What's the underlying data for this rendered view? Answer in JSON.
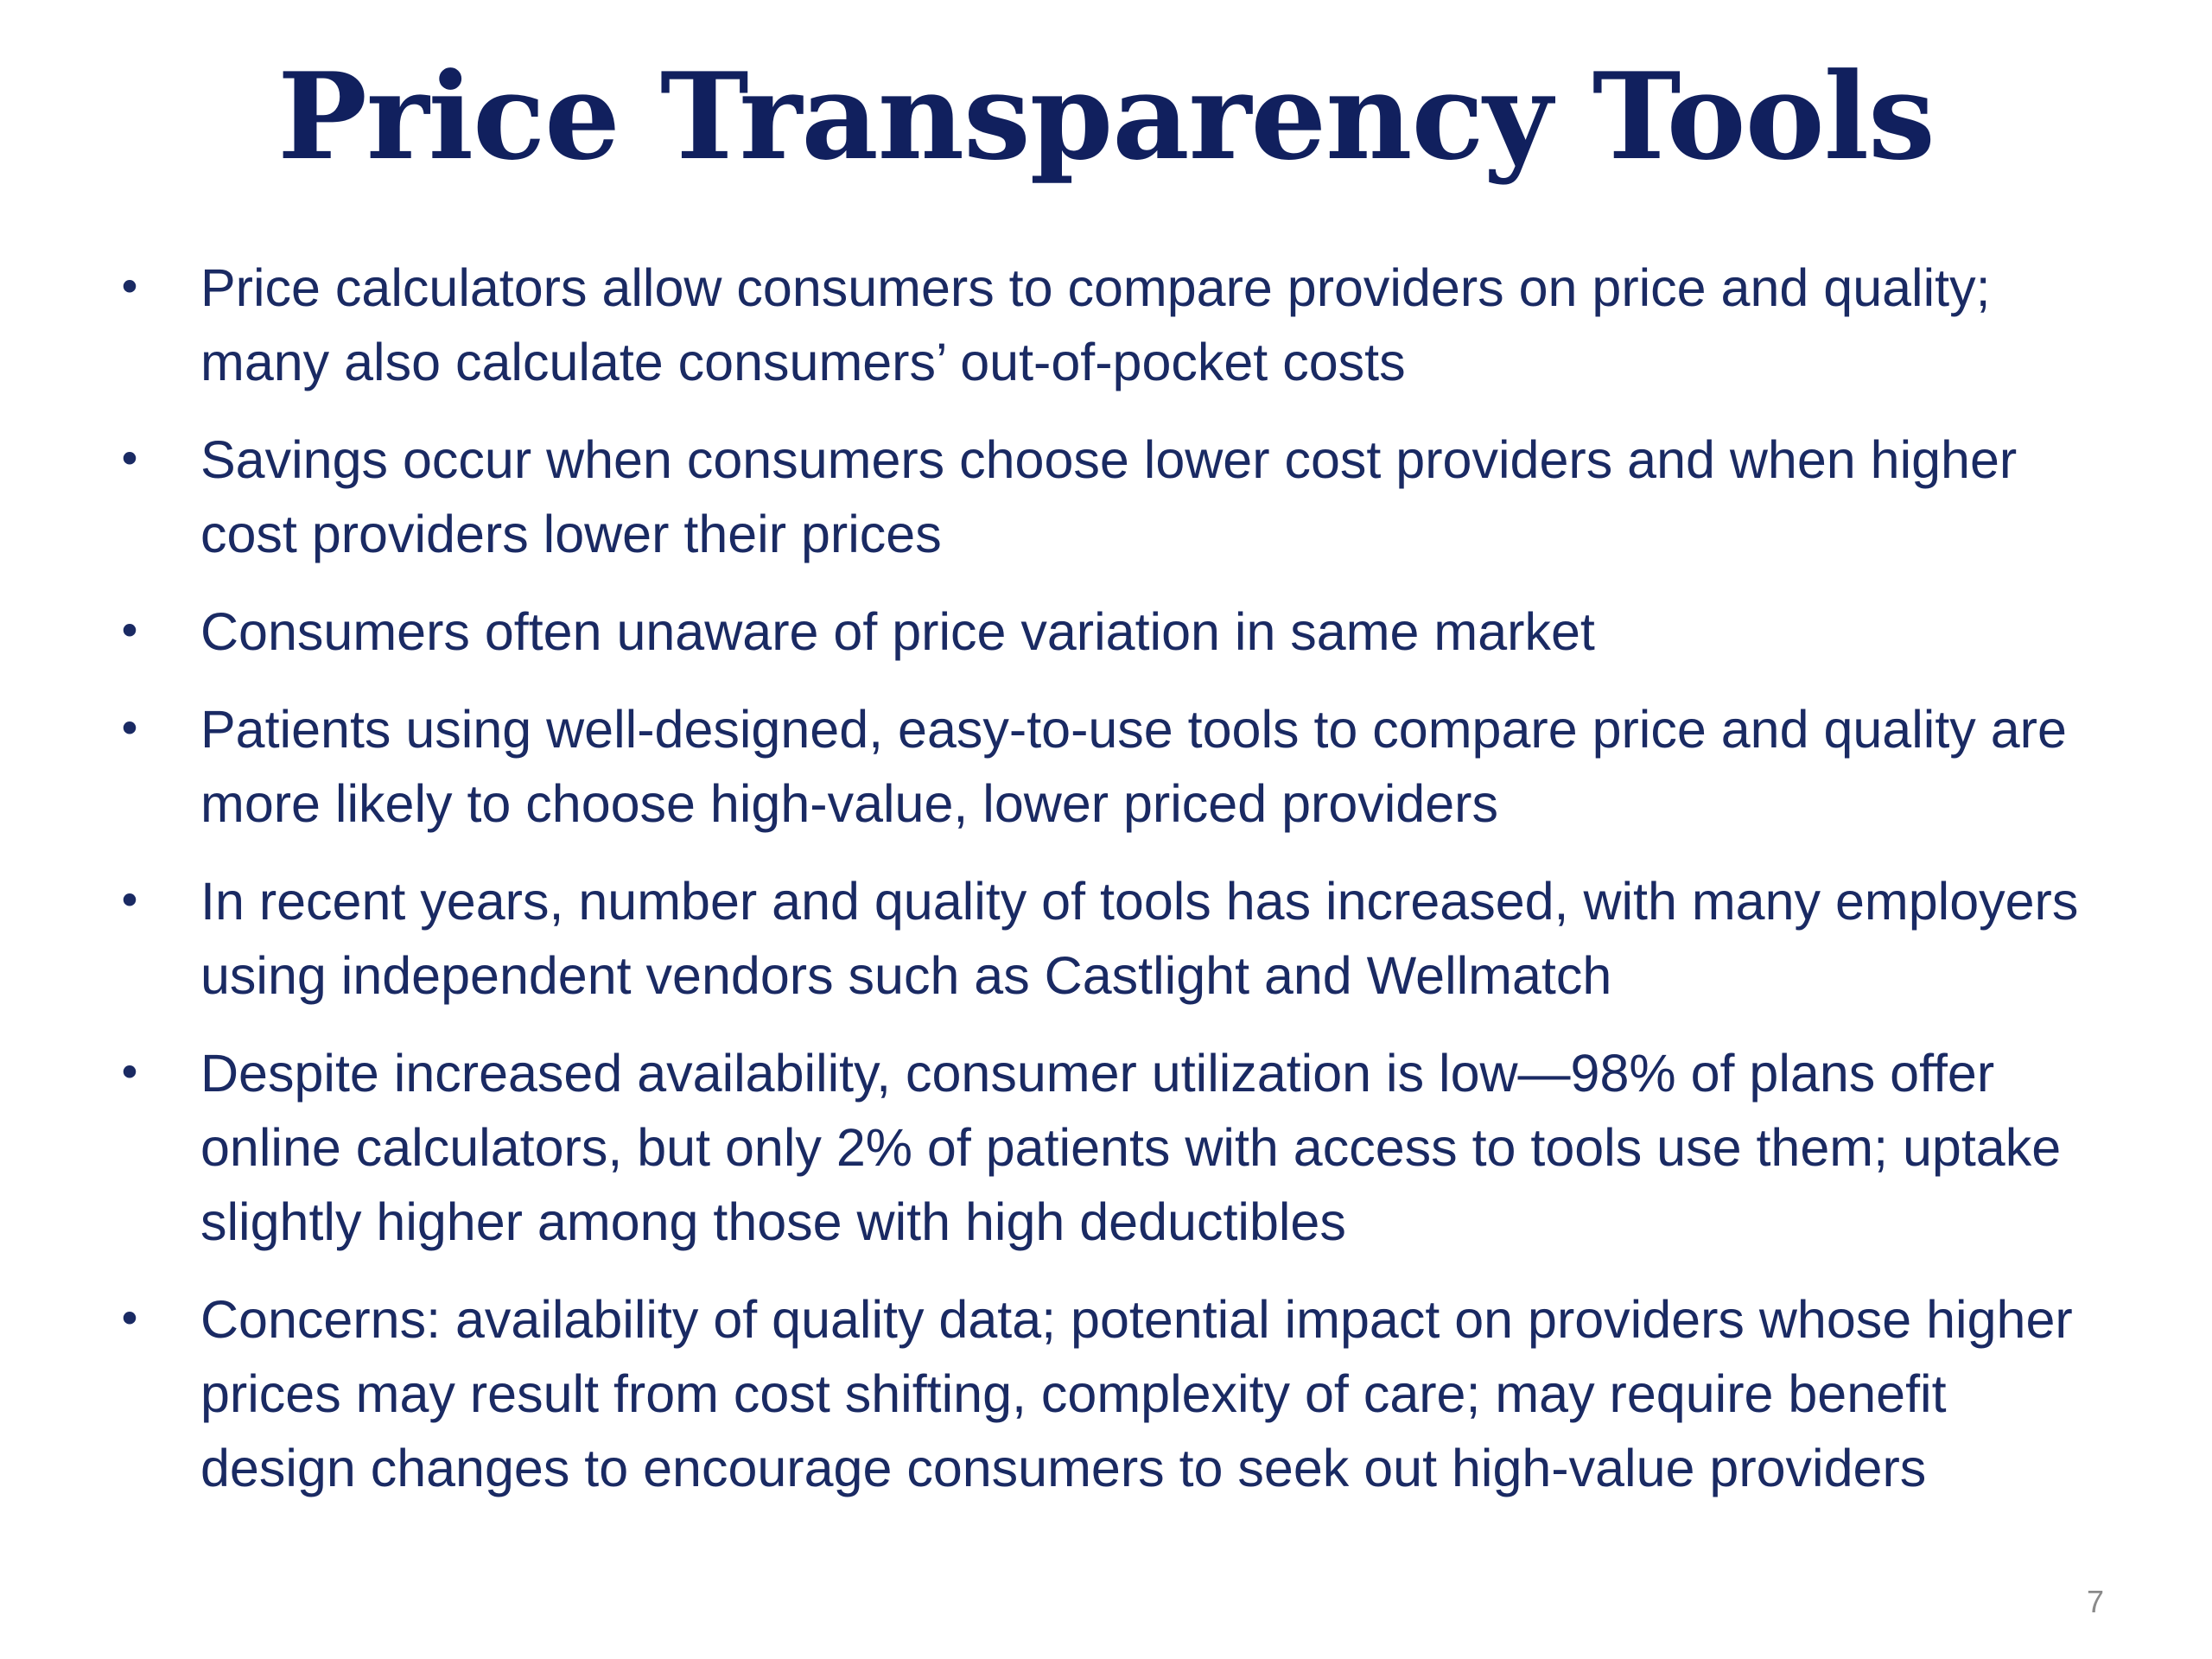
{
  "slide": {
    "title": "Price Transparency Tools",
    "bullet_glyph": "•",
    "bullets": [
      "Price calculators allow consumers to compare providers on price and quality; many also calculate consumers’ out-of-pocket costs",
      "Savings occur when consumers choose lower cost providers and when higher cost providers lower their prices",
      "Consumers often unaware of price variation in same market",
      "Patients using well-designed, easy-to-use tools to compare price and quality are more likely to choose high-value, lower priced providers",
      "In recent years, number and quality of tools has increased, with many employers using independent vendors such as Castlight and Wellmatch",
      "Despite increased availability, consumer utilization is low—98% of plans offer online calculators, but only 2% of patients with access to tools use them; uptake slightly higher among those with high deductibles",
      "Concerns: availability of quality data; potential impact on providers whose higher prices may result from cost shifting, complexity of care; may require benefit design changes to encourage consumers to seek out high-value providers"
    ],
    "page_number": "7"
  },
  "colors": {
    "title": "#11205e",
    "body_text": "#1a2a63",
    "page_number": "#8a8a8a",
    "background": "#ffffff"
  }
}
